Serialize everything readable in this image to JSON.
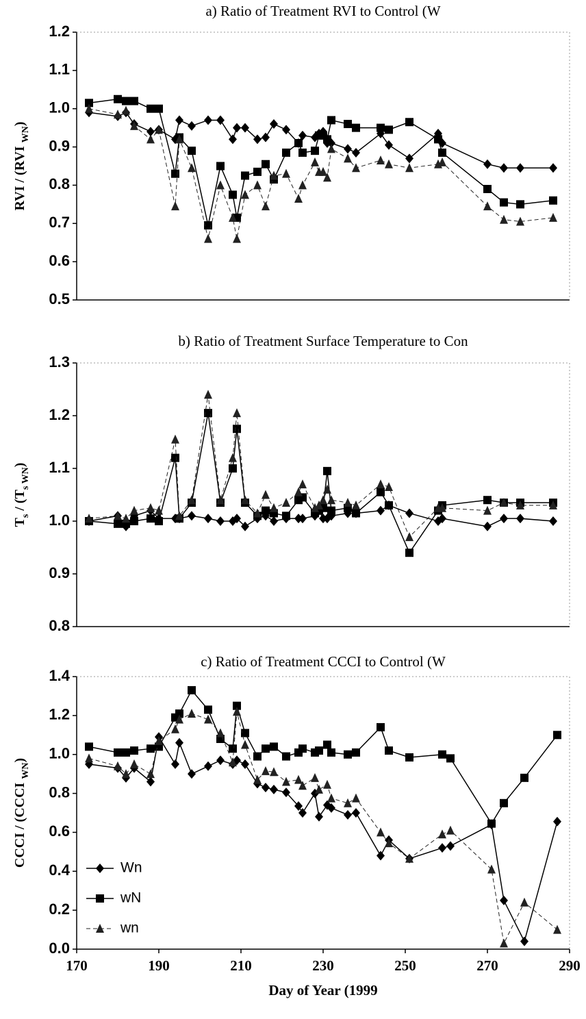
{
  "chart_data": [
    {
      "type": "line",
      "title": "a) Ratio of Treatment RVI to Control (W",
      "ylabel": [
        {
          "t": "RVI / (RVI "
        },
        {
          "t": "WN",
          "sub": true
        },
        {
          "t": ")"
        }
      ],
      "x": [
        173,
        180,
        182,
        184,
        188,
        190,
        194,
        195,
        198,
        202,
        205,
        208,
        209,
        211,
        214,
        216,
        218,
        221,
        224,
        225,
        228,
        229,
        230,
        231,
        232,
        236,
        238,
        244,
        246,
        251,
        258,
        259,
        270,
        274,
        278,
        286
      ],
      "xlim": [
        170,
        290
      ],
      "ylim": [
        0.5,
        1.2
      ],
      "yticks": [
        0.5,
        0.6,
        0.7,
        0.8,
        0.9,
        {
          "value": 1,
          "label": "1.0"
        },
        1.1,
        1.2
      ],
      "series": [
        {
          "name": "Wn",
          "color": "#000000",
          "marker": "diamond",
          "dashed": false,
          "values": [
            0.99,
            0.98,
            0.99,
            0.96,
            0.94,
            0.945,
            0.92,
            0.97,
            0.955,
            0.97,
            0.97,
            0.92,
            0.95,
            0.95,
            0.92,
            0.925,
            0.96,
            0.945,
            0.91,
            0.93,
            0.925,
            0.935,
            0.94,
            0.91,
            0.91,
            0.895,
            0.885,
            0.935,
            0.905,
            0.87,
            0.935,
            0.91,
            0.855,
            0.845,
            0.845,
            0.845
          ]
        },
        {
          "name": "wN",
          "color": "#000000",
          "marker": "square",
          "dashed": false,
          "values": [
            1.015,
            1.025,
            1.02,
            1.02,
            1.0,
            1.0,
            0.83,
            0.925,
            0.89,
            0.695,
            0.85,
            0.775,
            0.715,
            0.825,
            0.835,
            0.855,
            0.815,
            0.885,
            0.91,
            0.885,
            0.89,
            0.93,
            0.93,
            0.92,
            0.97,
            0.96,
            0.95,
            0.95,
            0.945,
            0.965,
            0.92,
            0.885,
            0.79,
            0.755,
            0.75,
            0.76
          ]
        },
        {
          "name": "wn",
          "color": "#222222",
          "marker": "triangle",
          "dashed": true,
          "values": [
            1.0,
            0.985,
            0.995,
            0.955,
            0.92,
            0.945,
            0.745,
            0.92,
            0.845,
            0.66,
            0.8,
            0.715,
            0.66,
            0.775,
            0.8,
            0.745,
            0.825,
            0.83,
            0.765,
            0.8,
            0.86,
            0.835,
            0.835,
            0.82,
            0.895,
            0.87,
            0.845,
            0.865,
            0.855,
            0.845,
            0.855,
            0.86,
            0.745,
            0.71,
            0.705,
            0.715
          ]
        }
      ]
    },
    {
      "type": "line",
      "title": "b) Ratio of Treatment Surface Temperature to Con",
      "ylabel": [
        {
          "t": "T"
        },
        {
          "t": "s",
          "sub": true
        },
        {
          "t": " / (T"
        },
        {
          "t": "s WN",
          "sub": true
        },
        {
          "t": ")"
        }
      ],
      "x": [
        173,
        180,
        182,
        184,
        188,
        190,
        194,
        195,
        198,
        202,
        205,
        208,
        209,
        211,
        214,
        216,
        218,
        221,
        224,
        225,
        228,
        229,
        230,
        231,
        232,
        236,
        238,
        244,
        246,
        251,
        258,
        259,
        270,
        274,
        278,
        286
      ],
      "xlim": [
        170,
        290
      ],
      "ylim": [
        0.8,
        1.3
      ],
      "yticks": [
        0.8,
        0.9,
        {
          "value": 1,
          "label": "1.0"
        },
        1.1,
        1.2,
        1.3
      ],
      "series": [
        {
          "name": "Wn",
          "color": "#000000",
          "marker": "diamond",
          "dashed": false,
          "values": [
            1.0,
            1.01,
            0.99,
            1.01,
            1.02,
            1.005,
            1.005,
            1.005,
            1.01,
            1.005,
            1.0,
            1.0,
            1.005,
            0.99,
            1.005,
            1.01,
            1.0,
            1.005,
            1.005,
            1.005,
            1.01,
            1.02,
            1.005,
            1.005,
            1.01,
            1.015,
            1.015,
            1.02,
            1.03,
            1.015,
            1.0,
            1.005,
            0.99,
            1.005,
            1.005,
            1.0
          ]
        },
        {
          "name": "wN",
          "color": "#000000",
          "marker": "square",
          "dashed": false,
          "values": [
            1.0,
            0.995,
            0.995,
            1.0,
            1.005,
            1.0,
            1.12,
            1.005,
            1.035,
            1.205,
            1.035,
            1.1,
            1.175,
            1.035,
            1.01,
            1.02,
            1.015,
            1.01,
            1.04,
            1.045,
            1.015,
            1.02,
            1.025,
            1.095,
            1.02,
            1.025,
            1.015,
            1.055,
            1.03,
            0.94,
            1.02,
            1.03,
            1.04,
            1.035,
            1.035,
            1.035
          ]
        },
        {
          "name": "wn",
          "color": "#222222",
          "marker": "triangle",
          "dashed": true,
          "values": [
            1.005,
            1.01,
            1.005,
            1.02,
            1.025,
            1.02,
            1.155,
            1.01,
            1.04,
            1.24,
            1.04,
            1.12,
            1.205,
            1.04,
            1.015,
            1.05,
            1.025,
            1.035,
            1.055,
            1.07,
            1.025,
            1.03,
            1.04,
            1.06,
            1.04,
            1.035,
            1.03,
            1.07,
            1.065,
            0.97,
            1.025,
            1.025,
            1.02,
            1.035,
            1.03,
            1.03
          ]
        }
      ]
    },
    {
      "type": "line",
      "title": "c) Ratio of Treatment CCCI to Control (W",
      "ylabel": [
        {
          "t": "CCCI / (CCCI "
        },
        {
          "t": "WN",
          "sub": true
        },
        {
          "t": ")"
        }
      ],
      "xlabel": "Day of Year (1999",
      "x": [
        173,
        180,
        182,
        184,
        188,
        190,
        194,
        195,
        198,
        202,
        205,
        208,
        209,
        211,
        214,
        216,
        218,
        221,
        224,
        225,
        228,
        229,
        231,
        232,
        236,
        238,
        244,
        246,
        251,
        259,
        261,
        271,
        274,
        279,
        287
      ],
      "xlim": [
        170,
        290
      ],
      "ylim": [
        0,
        1.4
      ],
      "xticks": [
        170,
        190,
        210,
        230,
        250,
        270,
        290
      ],
      "yticks": [
        {
          "value": 0,
          "label": "0.0"
        },
        0.2,
        0.4,
        0.6,
        0.8,
        {
          "value": 1,
          "label": "1.0"
        },
        1.2,
        1.4
      ],
      "legend": "lower left",
      "series": [
        {
          "name": "Wn",
          "color": "#000000",
          "marker": "diamond",
          "dashed": false,
          "values": [
            0.95,
            0.93,
            0.88,
            0.93,
            0.86,
            1.09,
            0.95,
            1.06,
            0.9,
            0.94,
            0.97,
            0.95,
            0.97,
            0.95,
            0.85,
            0.83,
            0.82,
            0.805,
            0.735,
            0.7,
            0.8,
            0.68,
            0.74,
            0.725,
            0.69,
            0.7,
            0.48,
            0.56,
            0.465,
            0.52,
            0.53,
            0.64,
            0.25,
            0.04,
            0.655
          ]
        },
        {
          "name": "wN",
          "color": "#000000",
          "marker": "square",
          "dashed": false,
          "values": [
            1.04,
            1.01,
            1.01,
            1.02,
            1.03,
            1.04,
            1.19,
            1.21,
            1.33,
            1.23,
            1.08,
            1.03,
            1.25,
            1.11,
            0.99,
            1.03,
            1.04,
            0.99,
            1.01,
            1.03,
            1.01,
            1.02,
            1.05,
            1.01,
            1.0,
            1.01,
            1.14,
            1.02,
            0.985,
            1.0,
            0.98,
            0.645,
            0.75,
            0.88,
            1.1
          ]
        },
        {
          "name": "wn",
          "color": "#222222",
          "marker": "triangle",
          "dashed": true,
          "values": [
            0.98,
            0.94,
            0.9,
            0.95,
            0.9,
            1.07,
            1.13,
            1.18,
            1.21,
            1.18,
            1.11,
            0.96,
            1.22,
            1.05,
            0.87,
            0.915,
            0.91,
            0.86,
            0.87,
            0.84,
            0.88,
            0.82,
            0.845,
            0.775,
            0.75,
            0.775,
            0.6,
            0.545,
            0.465,
            0.59,
            0.61,
            0.41,
            0.03,
            0.24,
            0.1
          ]
        }
      ]
    }
  ]
}
